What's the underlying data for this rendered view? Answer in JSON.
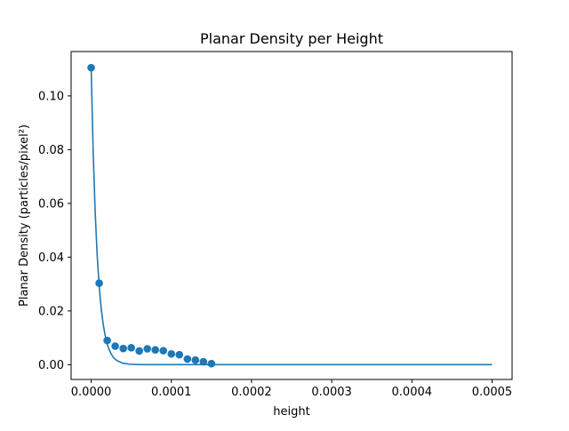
{
  "chart_data": {
    "type": "scatter",
    "title": "Planar Density per Height",
    "xlabel": "height",
    "ylabel": "Planar Density (particles/pixel²)",
    "xlim": [
      -2.5e-05,
      0.000525
    ],
    "ylim": [
      -0.0055,
      0.1165
    ],
    "x_ticks": [
      0,
      0.0001,
      0.0002,
      0.0003,
      0.0004,
      0.0005
    ],
    "x_tick_labels": [
      "0.0000",
      "0.0001",
      "0.0002",
      "0.0003",
      "0.0004",
      "0.0005"
    ],
    "y_ticks": [
      0,
      0.02,
      0.04,
      0.06,
      0.08,
      0.1
    ],
    "y_tick_labels": [
      "0.00",
      "0.02",
      "0.04",
      "0.06",
      "0.08",
      "0.10"
    ],
    "grid": false,
    "color": "#1f77b4",
    "series": [
      {
        "kind": "scatter",
        "x": [
          0,
          1e-05,
          2e-05,
          3e-05,
          4e-05,
          5e-05,
          6e-05,
          7e-05,
          8e-05,
          9e-05,
          0.0001,
          0.00011,
          0.00012,
          0.00013,
          0.00014,
          0.00015
        ],
        "y": [
          0.1105,
          0.0303,
          0.009,
          0.0069,
          0.006,
          0.0063,
          0.0051,
          0.0059,
          0.0055,
          0.0052,
          0.004,
          0.0037,
          0.0021,
          0.0017,
          0.0011,
          0.0004
        ]
      },
      {
        "kind": "line",
        "x": [
          0,
          2.5e-06,
          5e-06,
          7.5e-06,
          1e-05,
          1.25e-05,
          1.5e-05,
          1.75e-05,
          2e-05,
          2.25e-05,
          2.5e-05,
          2.75e-05,
          3e-05,
          3.25e-05,
          3.5e-05,
          3.75e-05,
          4e-05,
          4.25e-05,
          4.5e-05,
          4.75e-05,
          5e-05,
          5.5e-05,
          6e-05,
          6.5e-05,
          7e-05,
          8e-05,
          9e-05,
          0.0001,
          0.00012,
          0.00015,
          0.0002,
          0.0003,
          0.0004,
          0.0005
        ],
        "y": [
          0.1105,
          0.0792,
          0.0568,
          0.0407,
          0.0292,
          0.0209,
          0.015,
          0.0108,
          0.0077,
          0.0055,
          0.004,
          0.0028,
          0.002,
          0.0015,
          0.0011,
          0.0008,
          0.0005,
          0.0004,
          0.0003,
          0.0002,
          0.00015,
          0.0001,
          5e-05,
          3e-05,
          2e-05,
          1e-05,
          0.0,
          0.0,
          0.0,
          0.0,
          0.0,
          0.0,
          0.0,
          0.0
        ]
      }
    ]
  }
}
